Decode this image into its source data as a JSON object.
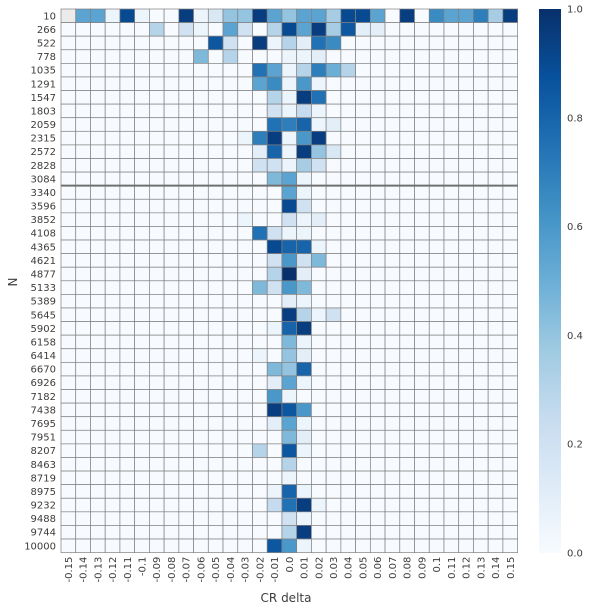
{
  "chart_data": {
    "type": "heatmap",
    "xlabel": "CR delta",
    "ylabel": "N",
    "x_categories": [
      "-0.15",
      "-0.14",
      "-0.13",
      "-0.12",
      "-0.11",
      "-0.1",
      "-0.09",
      "-0.08",
      "-0.07",
      "-0.06",
      "-0.05",
      "-0.04",
      "-0.03",
      "-0.02",
      "-0.01",
      "0.0",
      "0.01",
      "0.02",
      "0.03",
      "0.04",
      "0.05",
      "0.06",
      "0.07",
      "0.08",
      "0.09",
      "0.1",
      "0.11",
      "0.12",
      "0.13",
      "0.14",
      "0.15"
    ],
    "y_categories": [
      "10",
      "266",
      "522",
      "778",
      "1035",
      "1291",
      "1547",
      "1803",
      "2059",
      "2315",
      "2572",
      "2828",
      "3084",
      "3340",
      "3596",
      "3852",
      "4108",
      "4365",
      "4621",
      "4877",
      "5133",
      "5389",
      "5645",
      "5902",
      "6158",
      "6414",
      "6670",
      "6926",
      "7182",
      "7438",
      "7695",
      "7951",
      "8207",
      "8463",
      "8719",
      "8975",
      "9232",
      "9488",
      "9744",
      "10000"
    ],
    "colorbar": {
      "min": 0.0,
      "max": 1.0,
      "ticks": [
        "0.0",
        "0.2",
        "0.4",
        "0.6",
        "0.8",
        "1.0"
      ],
      "colormap": "Blues"
    },
    "colors": {
      "low": "#f7fbff",
      "high": "#08306b",
      "grid_line": "#808080",
      "missing": "#ebebeb"
    },
    "values": [
      [
        null,
        0.55,
        0.55,
        0.05,
        0.9,
        0.05,
        0.0,
        0.0,
        0.95,
        0.05,
        0.15,
        0.4,
        0.4,
        0.95,
        0.55,
        0.4,
        0.55,
        0.55,
        0.35,
        0.9,
        0.9,
        0.55,
        0.0,
        0.95,
        0.0,
        0.65,
        0.55,
        0.55,
        0.7,
        0.35,
        0.95
      ],
      [
        0.0,
        0.0,
        0.0,
        0.0,
        0.0,
        0.0,
        0.3,
        0.0,
        0.2,
        0.05,
        0.0,
        0.55,
        0.2,
        0.0,
        0.3,
        0.9,
        0.55,
        0.95,
        0.35,
        0.85,
        0.1,
        0.1,
        0.0,
        0.0,
        0.0,
        0.0,
        0.0,
        0.0,
        0.0,
        0.0,
        0.0
      ],
      [
        0.0,
        0.0,
        0.0,
        0.0,
        0.0,
        0.0,
        0.0,
        0.0,
        0.0,
        0.0,
        0.85,
        0.2,
        0.0,
        0.95,
        0.05,
        0.3,
        0.1,
        0.75,
        0.65,
        0.0,
        0.0,
        0.0,
        0.0,
        0.0,
        0.0,
        0.0,
        0.0,
        0.0,
        0.0,
        0.0,
        0.0
      ],
      [
        0.0,
        0.0,
        0.0,
        0.0,
        0.0,
        0.0,
        0.0,
        0.0,
        0.0,
        0.45,
        0.0,
        0.3,
        0.0,
        0.0,
        0.0,
        0.05,
        0.05,
        0.1,
        0.0,
        0.0,
        0.0,
        0.0,
        0.0,
        0.0,
        0.0,
        0.0,
        0.0,
        0.0,
        0.0,
        0.0,
        0.0
      ],
      [
        0.0,
        0.0,
        0.0,
        0.0,
        0.0,
        0.0,
        0.0,
        0.0,
        0.0,
        0.0,
        0.0,
        0.0,
        0.0,
        0.75,
        0.55,
        0.05,
        0.3,
        0.7,
        0.5,
        0.3,
        0.0,
        0.0,
        0.0,
        0.0,
        0.0,
        0.0,
        0.0,
        0.0,
        0.0,
        0.0,
        0.0
      ],
      [
        0.0,
        0.0,
        0.0,
        0.0,
        0.0,
        0.0,
        0.0,
        0.0,
        0.0,
        0.0,
        0.0,
        0.0,
        0.0,
        0.55,
        0.65,
        0.05,
        0.6,
        0.05,
        0.0,
        0.0,
        0.0,
        0.0,
        0.0,
        0.0,
        0.0,
        0.0,
        0.0,
        0.0,
        0.0,
        0.0,
        0.0
      ],
      [
        0.0,
        0.0,
        0.0,
        0.0,
        0.0,
        0.0,
        0.0,
        0.0,
        0.0,
        0.0,
        0.0,
        0.0,
        0.0,
        0.0,
        0.3,
        0.05,
        0.95,
        0.75,
        0.0,
        0.0,
        0.0,
        0.0,
        0.0,
        0.0,
        0.0,
        0.0,
        0.0,
        0.0,
        0.0,
        0.0,
        0.0
      ],
      [
        0.0,
        0.0,
        0.0,
        0.0,
        0.0,
        0.0,
        0.0,
        0.0,
        0.0,
        0.0,
        0.0,
        0.0,
        0.0,
        0.0,
        0.2,
        0.05,
        0.25,
        0.05,
        0.0,
        0.0,
        0.0,
        0.0,
        0.0,
        0.0,
        0.0,
        0.0,
        0.0,
        0.0,
        0.0,
        0.0,
        0.0
      ],
      [
        0.0,
        0.0,
        0.0,
        0.0,
        0.0,
        0.0,
        0.0,
        0.0,
        0.0,
        0.0,
        0.0,
        0.0,
        0.0,
        0.0,
        0.75,
        0.7,
        0.8,
        0.05,
        0.1,
        0.0,
        0.0,
        0.0,
        0.0,
        0.0,
        0.0,
        0.0,
        0.0,
        0.0,
        0.0,
        0.0,
        0.0
      ],
      [
        0.0,
        0.0,
        0.0,
        0.0,
        0.0,
        0.0,
        0.0,
        0.0,
        0.0,
        0.0,
        0.0,
        0.0,
        0.05,
        0.7,
        0.95,
        0.05,
        0.6,
        0.95,
        0.0,
        0.0,
        0.0,
        0.0,
        0.0,
        0.0,
        0.0,
        0.0,
        0.0,
        0.0,
        0.0,
        0.0,
        0.0
      ],
      [
        0.0,
        0.0,
        0.0,
        0.0,
        0.0,
        0.0,
        0.0,
        0.0,
        0.0,
        0.0,
        0.0,
        0.0,
        0.0,
        0.1,
        0.8,
        0.05,
        0.95,
        0.4,
        0.15,
        0.0,
        0.0,
        0.0,
        0.0,
        0.0,
        0.0,
        0.0,
        0.0,
        0.0,
        0.0,
        0.0,
        0.0
      ],
      [
        0.0,
        0.0,
        0.0,
        0.0,
        0.0,
        0.0,
        0.0,
        0.0,
        0.0,
        0.0,
        0.0,
        0.0,
        0.0,
        0.2,
        0.2,
        0.05,
        0.35,
        0.2,
        0.0,
        0.0,
        0.0,
        0.0,
        0.0,
        0.0,
        0.0,
        0.0,
        0.0,
        0.0,
        0.0,
        0.0,
        0.0
      ],
      [
        0.0,
        0.0,
        0.0,
        0.0,
        0.0,
        0.0,
        0.0,
        0.0,
        0.0,
        0.0,
        0.0,
        0.0,
        0.0,
        0.0,
        0.45,
        0.55,
        0.05,
        0.0,
        0.0,
        0.0,
        0.0,
        0.0,
        0.0,
        0.0,
        0.0,
        0.0,
        0.0,
        0.0,
        0.0,
        0.0,
        0.0
      ],
      [
        0.0,
        0.0,
        0.0,
        0.0,
        0.0,
        0.0,
        0.0,
        0.0,
        0.0,
        0.0,
        0.0,
        0.0,
        0.0,
        0.0,
        0.0,
        0.55,
        0.05,
        0.0,
        0.0,
        0.0,
        0.0,
        0.0,
        0.0,
        0.0,
        0.0,
        0.0,
        0.0,
        0.0,
        0.0,
        0.0,
        0.0
      ],
      [
        0.0,
        0.0,
        0.0,
        0.0,
        0.0,
        0.0,
        0.0,
        0.0,
        0.0,
        0.0,
        0.0,
        0.0,
        0.0,
        0.0,
        0.0,
        0.9,
        0.2,
        0.0,
        0.0,
        0.0,
        0.0,
        0.0,
        0.0,
        0.0,
        0.0,
        0.0,
        0.0,
        0.0,
        0.0,
        0.0,
        0.0
      ],
      [
        0.0,
        0.0,
        0.0,
        0.0,
        0.0,
        0.0,
        0.0,
        0.0,
        0.0,
        0.0,
        0.0,
        0.0,
        0.05,
        0.0,
        0.0,
        0.2,
        0.05,
        0.1,
        0.0,
        0.0,
        0.0,
        0.0,
        0.0,
        0.0,
        0.0,
        0.0,
        0.0,
        0.0,
        0.0,
        0.0,
        0.0
      ],
      [
        0.0,
        0.0,
        0.0,
        0.0,
        0.0,
        0.0,
        0.0,
        0.0,
        0.0,
        0.0,
        0.0,
        0.0,
        0.0,
        0.75,
        0.2,
        0.05,
        0.05,
        0.0,
        0.0,
        0.0,
        0.0,
        0.0,
        0.0,
        0.0,
        0.0,
        0.0,
        0.0,
        0.0,
        0.0,
        0.0,
        0.0
      ],
      [
        0.0,
        0.0,
        0.0,
        0.0,
        0.0,
        0.0,
        0.0,
        0.0,
        0.0,
        0.0,
        0.0,
        0.0,
        0.0,
        0.0,
        0.9,
        0.8,
        0.8,
        0.05,
        0.0,
        0.0,
        0.0,
        0.0,
        0.0,
        0.0,
        0.0,
        0.0,
        0.0,
        0.0,
        0.0,
        0.0,
        0.0
      ],
      [
        0.0,
        0.0,
        0.0,
        0.0,
        0.0,
        0.0,
        0.0,
        0.0,
        0.0,
        0.0,
        0.0,
        0.0,
        0.0,
        0.0,
        0.2,
        0.6,
        0.2,
        0.45,
        0.0,
        0.0,
        0.0,
        0.0,
        0.0,
        0.0,
        0.0,
        0.0,
        0.0,
        0.0,
        0.0,
        0.0,
        0.0
      ],
      [
        0.0,
        0.0,
        0.0,
        0.0,
        0.0,
        0.0,
        0.0,
        0.0,
        0.0,
        0.0,
        0.0,
        0.0,
        0.0,
        0.0,
        0.3,
        1.0,
        0.1,
        0.0,
        0.0,
        0.0,
        0.0,
        0.0,
        0.0,
        0.0,
        0.0,
        0.0,
        0.0,
        0.0,
        0.0,
        0.0,
        0.0
      ],
      [
        0.0,
        0.0,
        0.0,
        0.0,
        0.0,
        0.0,
        0.0,
        0.0,
        0.0,
        0.0,
        0.0,
        0.0,
        0.0,
        0.45,
        0.2,
        0.6,
        0.45,
        0.0,
        0.0,
        0.0,
        0.0,
        0.0,
        0.0,
        0.0,
        0.0,
        0.0,
        0.0,
        0.0,
        0.0,
        0.0,
        0.0
      ],
      [
        0.0,
        0.0,
        0.0,
        0.0,
        0.0,
        0.0,
        0.0,
        0.0,
        0.0,
        0.0,
        0.0,
        0.0,
        0.0,
        0.0,
        0.0,
        0.1,
        0.05,
        0.0,
        0.0,
        0.0,
        0.0,
        0.0,
        0.0,
        0.0,
        0.0,
        0.0,
        0.0,
        0.0,
        0.0,
        0.0,
        0.0
      ],
      [
        0.0,
        0.0,
        0.0,
        0.0,
        0.0,
        0.0,
        0.0,
        0.0,
        0.0,
        0.0,
        0.0,
        0.0,
        0.0,
        0.0,
        0.0,
        0.95,
        0.3,
        0.05,
        0.2,
        0.0,
        0.0,
        0.0,
        0.0,
        0.0,
        0.0,
        0.0,
        0.0,
        0.0,
        0.0,
        0.0,
        0.0
      ],
      [
        0.0,
        0.0,
        0.0,
        0.0,
        0.0,
        0.0,
        0.0,
        0.0,
        0.0,
        0.0,
        0.0,
        0.0,
        0.0,
        0.0,
        0.05,
        0.8,
        0.95,
        0.0,
        0.0,
        0.0,
        0.0,
        0.0,
        0.0,
        0.0,
        0.0,
        0.0,
        0.0,
        0.0,
        0.0,
        0.0,
        0.0
      ],
      [
        0.0,
        0.0,
        0.0,
        0.0,
        0.0,
        0.0,
        0.0,
        0.0,
        0.0,
        0.0,
        0.0,
        0.0,
        0.0,
        0.0,
        0.0,
        0.45,
        0.05,
        0.0,
        0.0,
        0.0,
        0.0,
        0.0,
        0.0,
        0.0,
        0.0,
        0.0,
        0.0,
        0.0,
        0.0,
        0.0,
        0.0
      ],
      [
        0.0,
        0.0,
        0.0,
        0.0,
        0.0,
        0.0,
        0.0,
        0.0,
        0.0,
        0.0,
        0.0,
        0.0,
        0.0,
        0.05,
        0.0,
        0.4,
        0.1,
        0.0,
        0.0,
        0.0,
        0.0,
        0.0,
        0.0,
        0.0,
        0.0,
        0.0,
        0.0,
        0.0,
        0.0,
        0.0,
        0.0
      ],
      [
        0.0,
        0.0,
        0.0,
        0.0,
        0.0,
        0.0,
        0.0,
        0.0,
        0.0,
        0.0,
        0.0,
        0.0,
        0.0,
        0.0,
        0.45,
        0.4,
        0.8,
        0.0,
        0.0,
        0.0,
        0.0,
        0.0,
        0.0,
        0.0,
        0.0,
        0.0,
        0.0,
        0.0,
        0.0,
        0.0,
        0.0
      ],
      [
        0.0,
        0.0,
        0.0,
        0.0,
        0.0,
        0.0,
        0.0,
        0.0,
        0.0,
        0.0,
        0.0,
        0.0,
        0.0,
        0.0,
        0.1,
        0.55,
        0.05,
        0.0,
        0.0,
        0.0,
        0.0,
        0.0,
        0.0,
        0.0,
        0.0,
        0.0,
        0.0,
        0.0,
        0.0,
        0.0,
        0.0
      ],
      [
        0.0,
        0.0,
        0.0,
        0.0,
        0.0,
        0.0,
        0.0,
        0.0,
        0.0,
        0.0,
        0.0,
        0.0,
        0.0,
        0.0,
        0.6,
        0.05,
        0.0,
        0.0,
        0.0,
        0.0,
        0.0,
        0.0,
        0.0,
        0.0,
        0.0,
        0.0,
        0.0,
        0.0,
        0.0,
        0.0,
        0.0
      ],
      [
        0.0,
        0.0,
        0.0,
        0.0,
        0.0,
        0.0,
        0.0,
        0.0,
        0.0,
        0.0,
        0.0,
        0.0,
        0.0,
        0.0,
        0.95,
        0.85,
        0.6,
        0.0,
        0.0,
        0.0,
        0.0,
        0.0,
        0.0,
        0.0,
        0.0,
        0.0,
        0.0,
        0.0,
        0.0,
        0.0,
        0.0
      ],
      [
        0.0,
        0.0,
        0.0,
        0.0,
        0.0,
        0.0,
        0.0,
        0.0,
        0.0,
        0.0,
        0.0,
        0.0,
        0.0,
        0.0,
        0.1,
        0.55,
        0.05,
        0.0,
        0.0,
        0.0,
        0.0,
        0.0,
        0.0,
        0.0,
        0.0,
        0.0,
        0.0,
        0.0,
        0.0,
        0.0,
        0.0
      ],
      [
        0.0,
        0.0,
        0.0,
        0.0,
        0.0,
        0.0,
        0.0,
        0.0,
        0.0,
        0.0,
        0.0,
        0.0,
        0.0,
        0.0,
        0.0,
        0.45,
        0.1,
        0.0,
        0.0,
        0.0,
        0.0,
        0.0,
        0.0,
        0.0,
        0.0,
        0.0,
        0.0,
        0.0,
        0.0,
        0.0,
        0.0
      ],
      [
        0.0,
        0.0,
        0.0,
        0.0,
        0.0,
        0.0,
        0.0,
        0.0,
        0.0,
        0.0,
        0.0,
        0.0,
        0.0,
        0.3,
        0.0,
        0.85,
        0.05,
        0.0,
        0.0,
        0.0,
        0.0,
        0.0,
        0.0,
        0.0,
        0.0,
        0.0,
        0.0,
        0.0,
        0.0,
        0.0,
        0.0
      ],
      [
        0.0,
        0.0,
        0.0,
        0.0,
        0.0,
        0.0,
        0.0,
        0.0,
        0.0,
        0.0,
        0.0,
        0.0,
        0.0,
        0.0,
        0.0,
        0.3,
        0.0,
        0.0,
        0.0,
        0.0,
        0.0,
        0.0,
        0.0,
        0.0,
        0.0,
        0.0,
        0.0,
        0.0,
        0.0,
        0.0,
        0.0
      ],
      [
        0.0,
        0.0,
        0.0,
        0.0,
        0.0,
        0.0,
        0.0,
        0.0,
        0.0,
        0.0,
        0.0,
        0.0,
        0.0,
        0.0,
        0.0,
        0.05,
        0.0,
        0.0,
        0.0,
        0.0,
        0.0,
        0.0,
        0.0,
        0.0,
        0.0,
        0.0,
        0.0,
        0.0,
        0.0,
        0.0,
        0.0
      ],
      [
        0.0,
        0.0,
        0.0,
        0.0,
        0.0,
        0.0,
        0.0,
        0.0,
        0.0,
        0.0,
        0.0,
        0.0,
        0.0,
        0.0,
        0.05,
        0.8,
        0.05,
        0.0,
        0.0,
        0.0,
        0.0,
        0.0,
        0.0,
        0.0,
        0.0,
        0.0,
        0.0,
        0.0,
        0.0,
        0.0,
        0.0
      ],
      [
        0.0,
        0.0,
        0.0,
        0.0,
        0.0,
        0.0,
        0.0,
        0.0,
        0.0,
        0.0,
        0.0,
        0.0,
        0.0,
        0.0,
        0.25,
        0.75,
        0.95,
        0.05,
        0.0,
        0.0,
        0.0,
        0.0,
        0.0,
        0.0,
        0.0,
        0.0,
        0.0,
        0.0,
        0.0,
        0.0,
        0.0
      ],
      [
        0.0,
        0.0,
        0.0,
        0.0,
        0.0,
        0.0,
        0.0,
        0.0,
        0.0,
        0.0,
        0.0,
        0.0,
        0.0,
        0.0,
        0.0,
        0.2,
        0.05,
        0.0,
        0.0,
        0.0,
        0.0,
        0.0,
        0.0,
        0.0,
        0.0,
        0.0,
        0.0,
        0.0,
        0.0,
        0.0,
        0.0
      ],
      [
        0.0,
        0.0,
        0.0,
        0.0,
        0.0,
        0.0,
        0.0,
        0.0,
        0.0,
        0.0,
        0.0,
        0.0,
        0.0,
        0.0,
        0.0,
        0.3,
        0.95,
        0.0,
        0.0,
        0.0,
        0.0,
        0.0,
        0.0,
        0.0,
        0.0,
        0.0,
        0.0,
        0.0,
        0.0,
        0.0,
        0.0
      ],
      [
        0.0,
        0.0,
        0.0,
        0.0,
        0.0,
        0.0,
        0.0,
        0.0,
        0.0,
        0.0,
        0.0,
        0.0,
        0.0,
        0.0,
        0.85,
        0.6,
        0.05,
        0.0,
        0.0,
        0.0,
        0.0,
        0.0,
        0.0,
        0.0,
        0.0,
        0.0,
        0.0,
        0.0,
        0.0,
        0.0,
        0.0
      ]
    ]
  }
}
